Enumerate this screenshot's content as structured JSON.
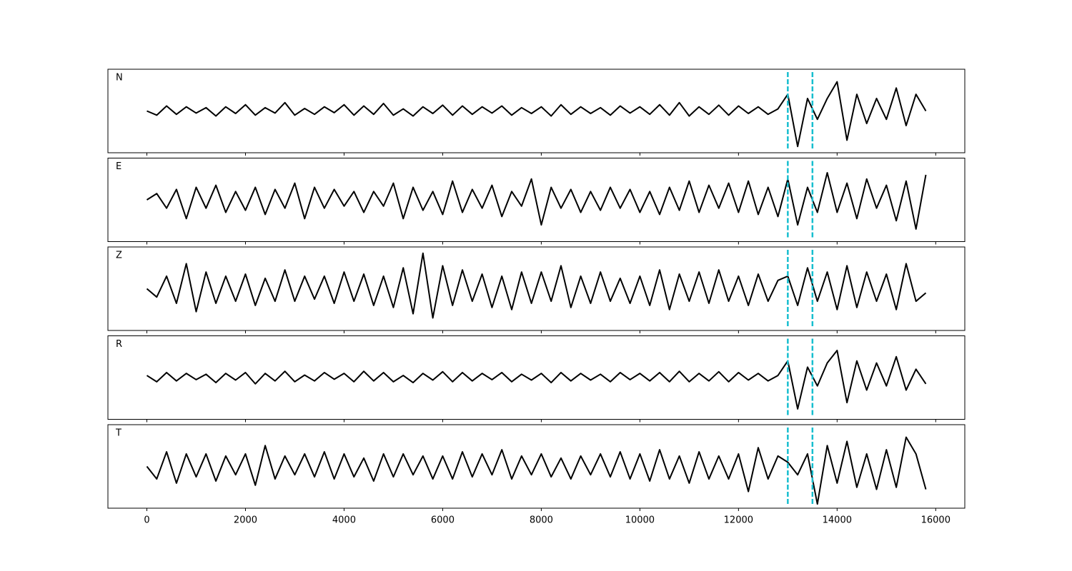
{
  "chart_data": {
    "type": "line",
    "panels": "stacked",
    "x": [
      0,
      200,
      400,
      600,
      800,
      1000,
      1200,
      1400,
      1600,
      1800,
      2000,
      2200,
      2400,
      2600,
      2800,
      3000,
      3200,
      3400,
      3600,
      3800,
      4000,
      4200,
      4400,
      4600,
      4800,
      5000,
      5200,
      5400,
      5600,
      5800,
      6000,
      6200,
      6400,
      6600,
      6800,
      7000,
      7200,
      7400,
      7600,
      7800,
      8000,
      8200,
      8400,
      8600,
      8800,
      9000,
      9200,
      9400,
      9600,
      9800,
      10000,
      10200,
      10400,
      10600,
      10800,
      11000,
      11200,
      11400,
      11600,
      11800,
      12000,
      12200,
      12400,
      12600,
      12800,
      13000,
      13200,
      13400,
      13600,
      13800,
      14000,
      14200,
      14400,
      14600,
      14800,
      15000,
      15200,
      15400,
      15600,
      15800
    ],
    "series": [
      {
        "name": "N",
        "color": "#000000",
        "values": [
          0,
          -0.1,
          0.12,
          -0.08,
          0.1,
          -0.05,
          0.08,
          -0.12,
          0.1,
          -0.06,
          0.15,
          -0.1,
          0.08,
          -0.05,
          0.2,
          -0.1,
          0.06,
          -0.08,
          0.1,
          -0.04,
          0.15,
          -0.1,
          0.12,
          -0.08,
          0.18,
          -0.1,
          0.05,
          -0.12,
          0.1,
          -0.06,
          0.14,
          -0.1,
          0.12,
          -0.08,
          0.1,
          -0.05,
          0.12,
          -0.1,
          0.08,
          -0.06,
          0.1,
          -0.12,
          0.15,
          -0.08,
          0.1,
          -0.06,
          0.08,
          -0.1,
          0.12,
          -0.05,
          0.1,
          -0.08,
          0.15,
          -0.1,
          0.2,
          -0.12,
          0.1,
          -0.08,
          0.14,
          -0.1,
          0.12,
          -0.06,
          0.1,
          -0.08,
          0.05,
          0.4,
          -0.85,
          0.3,
          -0.2,
          0.3,
          0.7,
          -0.7,
          0.4,
          -0.3,
          0.3,
          -0.2,
          0.55,
          -0.35,
          0.4,
          0
        ]
      },
      {
        "name": "E",
        "color": "#000000",
        "values": [
          0,
          0.15,
          -0.2,
          0.25,
          -0.45,
          0.3,
          -0.2,
          0.35,
          -0.3,
          0.2,
          -0.25,
          0.3,
          -0.35,
          0.25,
          -0.2,
          0.4,
          -0.45,
          0.3,
          -0.2,
          0.25,
          -0.15,
          0.2,
          -0.3,
          0.2,
          -0.15,
          0.4,
          -0.45,
          0.3,
          -0.25,
          0.2,
          -0.35,
          0.45,
          -0.3,
          0.25,
          -0.2,
          0.35,
          -0.4,
          0.2,
          -0.15,
          0.5,
          -0.6,
          0.3,
          -0.2,
          0.25,
          -0.3,
          0.2,
          -0.25,
          0.3,
          -0.2,
          0.25,
          -0.3,
          0.2,
          -0.35,
          0.3,
          -0.25,
          0.45,
          -0.3,
          0.35,
          -0.2,
          0.4,
          -0.3,
          0.45,
          -0.35,
          0.3,
          -0.4,
          0.5,
          -0.6,
          0.3,
          -0.3,
          0.65,
          -0.3,
          0.4,
          -0.45,
          0.5,
          -0.2,
          0.35,
          -0.5,
          0.45,
          -0.7,
          0.6
        ]
      },
      {
        "name": "Z",
        "color": "#000000",
        "values": [
          0,
          -0.2,
          0.3,
          -0.35,
          0.6,
          -0.55,
          0.4,
          -0.35,
          0.3,
          -0.3,
          0.35,
          -0.4,
          0.25,
          -0.3,
          0.45,
          -0.3,
          0.3,
          -0.25,
          0.3,
          -0.35,
          0.4,
          -0.3,
          0.35,
          -0.4,
          0.3,
          -0.45,
          0.5,
          -0.6,
          0.85,
          -0.7,
          0.55,
          -0.4,
          0.45,
          -0.3,
          0.35,
          -0.45,
          0.3,
          -0.5,
          0.4,
          -0.35,
          0.4,
          -0.3,
          0.55,
          -0.45,
          0.3,
          -0.35,
          0.4,
          -0.3,
          0.25,
          -0.35,
          0.3,
          -0.4,
          0.45,
          -0.5,
          0.35,
          -0.3,
          0.4,
          -0.35,
          0.45,
          -0.3,
          0.3,
          -0.4,
          0.35,
          -0.3,
          0.2,
          0.3,
          -0.4,
          0.5,
          -0.3,
          0.4,
          -0.5,
          0.55,
          -0.45,
          0.4,
          -0.3,
          0.35,
          -0.5,
          0.6,
          -0.3,
          -0.1
        ]
      },
      {
        "name": "R",
        "color": "#000000",
        "values": [
          0.05,
          -0.1,
          0.12,
          -0.08,
          0.1,
          -0.05,
          0.08,
          -0.12,
          0.1,
          -0.06,
          0.12,
          -0.15,
          0.1,
          -0.08,
          0.15,
          -0.1,
          0.06,
          -0.08,
          0.12,
          -0.04,
          0.1,
          -0.1,
          0.15,
          -0.08,
          0.12,
          -0.1,
          0.05,
          -0.12,
          0.1,
          -0.06,
          0.14,
          -0.1,
          0.12,
          -0.08,
          0.1,
          -0.05,
          0.12,
          -0.1,
          0.08,
          -0.06,
          0.1,
          -0.12,
          0.12,
          -0.08,
          0.1,
          -0.06,
          0.08,
          -0.1,
          0.12,
          -0.05,
          0.1,
          -0.08,
          0.12,
          -0.1,
          0.15,
          -0.1,
          0.1,
          -0.08,
          0.14,
          -0.1,
          0.12,
          -0.06,
          0.1,
          -0.08,
          0.05,
          0.4,
          -0.75,
          0.25,
          -0.2,
          0.35,
          0.65,
          -0.6,
          0.4,
          -0.3,
          0.35,
          -0.2,
          0.5,
          -0.3,
          0.2,
          -0.15
        ]
      },
      {
        "name": "T",
        "color": "#000000",
        "values": [
          0,
          -0.3,
          0.35,
          -0.4,
          0.3,
          -0.25,
          0.3,
          -0.35,
          0.25,
          -0.2,
          0.3,
          -0.45,
          0.5,
          -0.3,
          0.25,
          -0.2,
          0.3,
          -0.25,
          0.35,
          -0.3,
          0.3,
          -0.25,
          0.2,
          -0.35,
          0.3,
          -0.25,
          0.3,
          -0.2,
          0.25,
          -0.3,
          0.25,
          -0.3,
          0.35,
          -0.25,
          0.3,
          -0.2,
          0.4,
          -0.3,
          0.25,
          -0.2,
          0.3,
          -0.25,
          0.2,
          -0.3,
          0.25,
          -0.2,
          0.3,
          -0.25,
          0.35,
          -0.3,
          0.3,
          -0.35,
          0.4,
          -0.3,
          0.25,
          -0.4,
          0.35,
          -0.3,
          0.25,
          -0.3,
          0.3,
          -0.6,
          0.45,
          -0.3,
          0.25,
          0.1,
          -0.2,
          0.3,
          -0.9,
          0.5,
          -0.4,
          0.6,
          -0.5,
          0.3,
          -0.55,
          0.4,
          -0.5,
          0.7,
          0.3,
          -0.55
        ]
      }
    ],
    "xlim": [
      -790,
      16590
    ],
    "xticks": [
      0,
      2000,
      4000,
      6000,
      8000,
      10000,
      12000,
      14000,
      16000
    ],
    "ylim": [
      -1,
      1
    ],
    "markers": [
      13000,
      13500
    ],
    "marker_color": "#17becf"
  }
}
